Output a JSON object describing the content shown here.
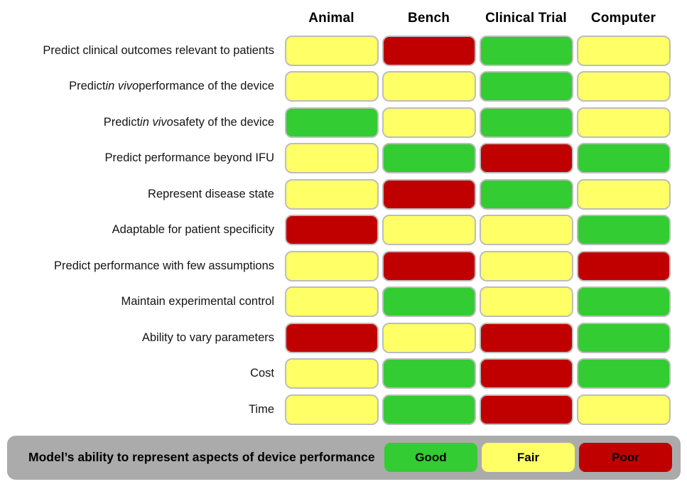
{
  "chart_data": {
    "type": "heatmap",
    "title": "Model's ability to represent aspects of device performance",
    "columns": [
      "Animal",
      "Bench",
      "Clinical Trial",
      "Computer"
    ],
    "rows": [
      {
        "label": "Predict clinical outcomes relevant to patients",
        "values": [
          "Fair",
          "Poor",
          "Good",
          "Fair"
        ]
      },
      {
        "label": "Predict in vivo performance of the device",
        "italic": "in vivo",
        "values": [
          "Fair",
          "Fair",
          "Good",
          "Fair"
        ]
      },
      {
        "label": "Predict in vivo safety of the device",
        "italic": "in vivo",
        "values": [
          "Good",
          "Fair",
          "Good",
          "Fair"
        ]
      },
      {
        "label": "Predict performance beyond IFU",
        "values": [
          "Fair",
          "Good",
          "Poor",
          "Good"
        ]
      },
      {
        "label": "Represent disease state",
        "values": [
          "Fair",
          "Poor",
          "Good",
          "Fair"
        ]
      },
      {
        "label": "Adaptable for patient specificity",
        "values": [
          "Poor",
          "Fair",
          "Fair",
          "Good"
        ]
      },
      {
        "label": "Predict performance with few assumptions",
        "values": [
          "Fair",
          "Poor",
          "Fair",
          "Poor"
        ]
      },
      {
        "label": "Maintain experimental control",
        "values": [
          "Fair",
          "Good",
          "Fair",
          "Good"
        ]
      },
      {
        "label": "Ability to vary parameters",
        "values": [
          "Poor",
          "Fair",
          "Poor",
          "Good"
        ]
      },
      {
        "label": "Cost",
        "values": [
          "Fair",
          "Good",
          "Poor",
          "Good"
        ]
      },
      {
        "label": "Time",
        "values": [
          "Fair",
          "Good",
          "Poor",
          "Fair"
        ]
      }
    ],
    "value_colors": {
      "Good": "#33cc33",
      "Fair": "#ffff66",
      "Poor": "#c00000"
    },
    "legend_position": "bottom"
  },
  "legend": {
    "caption": "Model’s ability to represent aspects of device performance",
    "bar_color": "#ababab",
    "items": [
      {
        "label": "Good",
        "color": "#33cc33"
      },
      {
        "label": "Fair",
        "color": "#ffff66"
      },
      {
        "label": "Poor",
        "color": "#c00000"
      }
    ]
  }
}
